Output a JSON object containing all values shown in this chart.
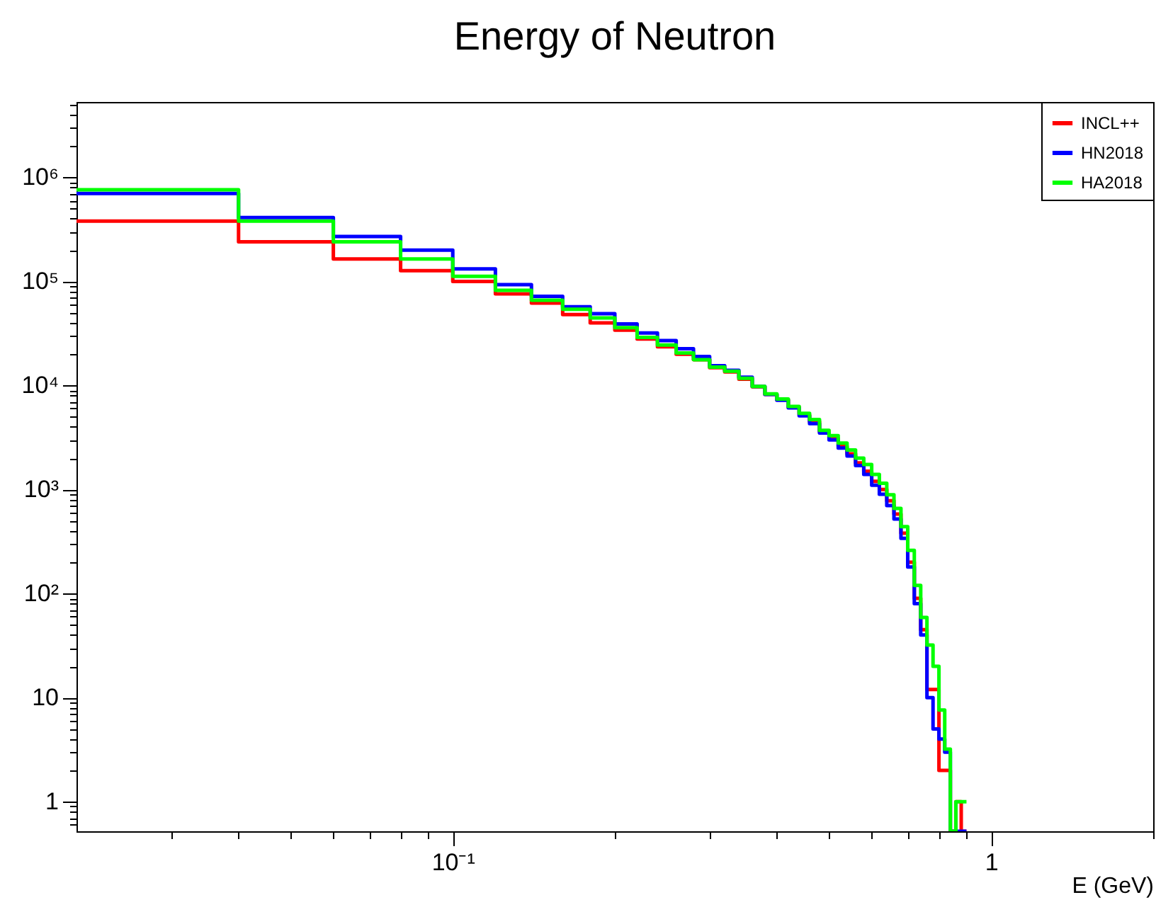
{
  "chart_data": {
    "type": "histogram",
    "title": "Energy of Neutron",
    "xlabel": "E (GeV)",
    "log": "xy",
    "grid": false,
    "legend": "top right",
    "line_style": "solid",
    "xlim": [
      0.02,
      2
    ],
    "ylim": [
      0.52,
      5300000
    ],
    "xticks": [
      {
        "value": 0.03,
        "label": null
      },
      {
        "value": 0.04,
        "label": null
      },
      {
        "value": 0.05,
        "label": null
      },
      {
        "value": 0.06,
        "label": null
      },
      {
        "value": 0.07,
        "label": null
      },
      {
        "value": 0.08,
        "label": null
      },
      {
        "value": 0.09,
        "label": null
      },
      {
        "value": 0.1,
        "label": "10⁻¹"
      },
      {
        "value": 0.2,
        "label": null
      },
      {
        "value": 0.3,
        "label": null
      },
      {
        "value": 0.4,
        "label": null
      },
      {
        "value": 0.5,
        "label": null
      },
      {
        "value": 0.6,
        "label": null
      },
      {
        "value": 0.7,
        "label": null
      },
      {
        "value": 0.8,
        "label": null
      },
      {
        "value": 0.9,
        "label": null
      },
      1,
      {
        "value": 2,
        "label": null
      }
    ],
    "yticks": [
      {
        "value": 0.6,
        "label": null
      },
      {
        "value": 0.7,
        "label": null
      },
      {
        "value": 0.8,
        "label": null
      },
      {
        "value": 0.9,
        "label": null
      },
      1,
      {
        "value": 2,
        "label": null
      },
      {
        "value": 3,
        "label": null
      },
      {
        "value": 4,
        "label": null
      },
      {
        "value": 5,
        "label": null
      },
      {
        "value": 6,
        "label": null
      },
      {
        "value": 7,
        "label": null
      },
      {
        "value": 8,
        "label": null
      },
      {
        "value": 9,
        "label": null
      },
      10,
      {
        "value": 20,
        "label": null
      },
      {
        "value": 30,
        "label": null
      },
      {
        "value": 40,
        "label": null
      },
      {
        "value": 50,
        "label": null
      },
      {
        "value": 60,
        "label": null
      },
      {
        "value": 70,
        "label": null
      },
      {
        "value": 80,
        "label": null
      },
      {
        "value": 90,
        "label": null
      },
      {
        "value": 100,
        "label": "10²"
      },
      {
        "value": 200,
        "label": null
      },
      {
        "value": 300,
        "label": null
      },
      {
        "value": 400,
        "label": null
      },
      {
        "value": 500,
        "label": null
      },
      {
        "value": 600,
        "label": null
      },
      {
        "value": 700,
        "label": null
      },
      {
        "value": 800,
        "label": null
      },
      {
        "value": 900,
        "label": null
      },
      {
        "value": 1000,
        "label": "10³"
      },
      {
        "value": 2000,
        "label": null
      },
      {
        "value": 3000,
        "label": null
      },
      {
        "value": 4000,
        "label": null
      },
      {
        "value": 5000,
        "label": null
      },
      {
        "value": 6000,
        "label": null
      },
      {
        "value": 7000,
        "label": null
      },
      {
        "value": 8000,
        "label": null
      },
      {
        "value": 9000,
        "label": null
      },
      {
        "value": 10000,
        "label": "10⁴"
      },
      {
        "value": 20000,
        "label": null
      },
      {
        "value": 30000,
        "label": null
      },
      {
        "value": 40000,
        "label": null
      },
      {
        "value": 50000,
        "label": null
      },
      {
        "value": 60000,
        "label": null
      },
      {
        "value": 70000,
        "label": null
      },
      {
        "value": 80000,
        "label": null
      },
      {
        "value": 90000,
        "label": null
      },
      {
        "value": 100000,
        "label": "10⁵"
      },
      {
        "value": 200000,
        "label": null
      },
      {
        "value": 300000,
        "label": null
      },
      {
        "value": 400000,
        "label": null
      },
      {
        "value": 500000,
        "label": null
      },
      {
        "value": 600000,
        "label": null
      },
      {
        "value": 700000,
        "label": null
      },
      {
        "value": 800000,
        "label": null
      },
      {
        "value": 900000,
        "label": null
      },
      {
        "value": 1000000,
        "label": "10⁶"
      },
      {
        "value": 2000000,
        "label": null
      },
      {
        "value": 3000000,
        "label": null
      },
      {
        "value": 4000000,
        "label": null
      },
      {
        "value": 5000000,
        "label": null
      }
    ],
    "bins": [
      0.02,
      0.04,
      0.06,
      0.08,
      0.1,
      0.12,
      0.14,
      0.16,
      0.18,
      0.2,
      0.22,
      0.24,
      0.26,
      0.28,
      0.3,
      0.32,
      0.34,
      0.36,
      0.38,
      0.4,
      0.42,
      0.44,
      0.46,
      0.48,
      0.5,
      0.52,
      0.54,
      0.56,
      0.58,
      0.6,
      0.62,
      0.64,
      0.66,
      0.68,
      0.7,
      0.72,
      0.74,
      0.76,
      0.78,
      0.8,
      0.82,
      0.84,
      0.86,
      0.88,
      0.9
    ],
    "series": [
      {
        "name": "INCL++",
        "color": "#ff0000",
        "values": [
          380000,
          240000,
          164000,
          127000,
          100000,
          76000,
          62000,
          48000,
          40000,
          34000,
          28000,
          23500,
          20000,
          17700,
          14800,
          13500,
          11500,
          9700,
          8200,
          7300,
          6200,
          5200,
          4500,
          3600,
          3100,
          2600,
          2200,
          1800,
          1500,
          1200,
          1000,
          780,
          580,
          380,
          200,
          90,
          45,
          12,
          12,
          2,
          2,
          null,
          1,
          null
        ]
      },
      {
        "name": "HN2018",
        "color": "#0000ff",
        "values": [
          700000,
          410000,
          270000,
          200000,
          132000,
          93000,
          72000,
          57000,
          49000,
          39000,
          32000,
          27000,
          22500,
          19000,
          15500,
          14000,
          12000,
          9800,
          8200,
          7200,
          6100,
          5100,
          4300,
          3500,
          3000,
          2500,
          2100,
          1700,
          1400,
          1100,
          900,
          700,
          520,
          340,
          180,
          80,
          40,
          10,
          5,
          4,
          3,
          null,
          null,
          null
        ]
      },
      {
        "name": "HA2018",
        "color": "#00ff00",
        "values": [
          760000,
          380000,
          240000,
          164000,
          112000,
          82000,
          66000,
          54000,
          44500,
          36000,
          29000,
          24500,
          20500,
          17700,
          15000,
          13700,
          11700,
          9800,
          8300,
          7400,
          6300,
          5400,
          4700,
          3700,
          3300,
          2800,
          2400,
          2000,
          1740,
          1400,
          1150,
          890,
          660,
          440,
          260,
          120,
          59,
          32,
          20,
          7.6,
          3.2,
          null,
          1,
          1
        ]
      }
    ]
  }
}
